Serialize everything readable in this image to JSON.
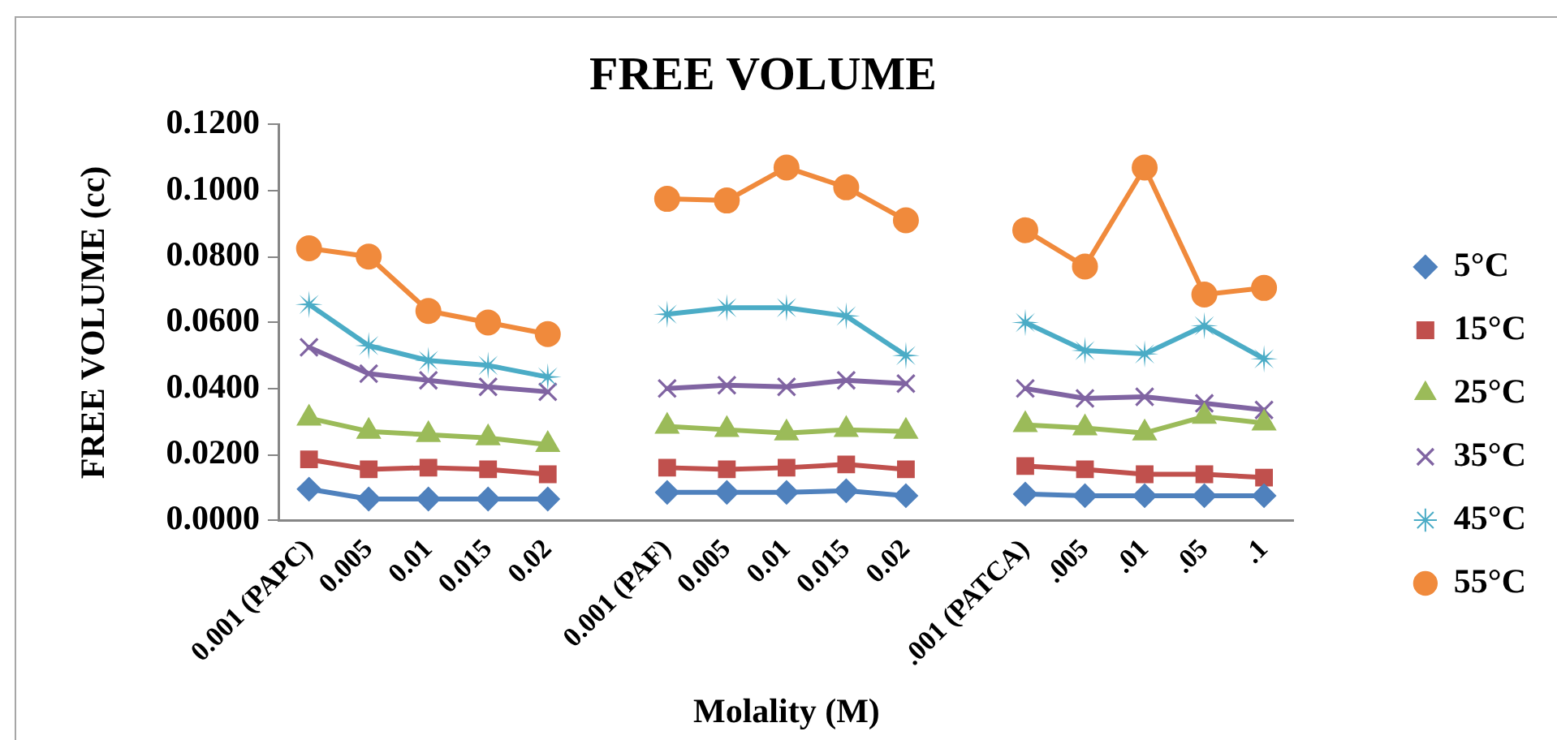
{
  "chart_data": {
    "type": "line",
    "title": "FREE VOLUME",
    "xlabel": "Molality (M)",
    "ylabel": "FREE VOLUME (cc)",
    "categories": [
      "0.001 (PAPC)",
      "0.005",
      "0.01",
      "0.015",
      "0.02",
      null,
      "0.001 (PAF)",
      "0.005",
      "0.01",
      "0.015",
      "0.02",
      null,
      ".001 (PATCA)",
      ".005",
      ".01",
      ".05",
      ".1"
    ],
    "series": [
      {
        "name": "5°C",
        "color": "#4f81bd",
        "marker": "diamond",
        "values": [
          0.0095,
          0.0065,
          0.0065,
          0.0065,
          0.0065,
          null,
          0.0085,
          0.0085,
          0.0085,
          0.009,
          0.0075,
          null,
          0.008,
          0.0075,
          0.0075,
          0.0075,
          0.0075
        ]
      },
      {
        "name": "15°C",
        "color": "#c0504d",
        "marker": "square",
        "values": [
          0.0185,
          0.0155,
          0.016,
          0.0155,
          0.014,
          null,
          0.016,
          0.0155,
          0.016,
          0.017,
          0.0155,
          null,
          0.0165,
          0.0155,
          0.014,
          0.014,
          0.013
        ]
      },
      {
        "name": "25°C",
        "color": "#9bbb59",
        "marker": "triangle",
        "values": [
          0.031,
          0.027,
          0.026,
          0.025,
          0.023,
          null,
          0.0285,
          0.0275,
          0.0265,
          0.0275,
          0.027,
          null,
          0.029,
          0.028,
          0.0265,
          0.0315,
          0.0295
        ]
      },
      {
        "name": "35°C",
        "color": "#8064a2",
        "marker": "cross",
        "values": [
          0.0525,
          0.0445,
          0.0425,
          0.0405,
          0.039,
          null,
          0.04,
          0.041,
          0.0405,
          0.0425,
          0.0415,
          null,
          0.04,
          0.037,
          0.0375,
          0.0355,
          0.0335
        ]
      },
      {
        "name": "45°C",
        "color": "#4bacc6",
        "marker": "star",
        "values": [
          0.0655,
          0.053,
          0.0485,
          0.047,
          0.0435,
          null,
          0.0625,
          0.0645,
          0.0645,
          0.062,
          0.05,
          null,
          0.06,
          0.0515,
          0.0505,
          0.059,
          0.049
        ]
      },
      {
        "name": "55°C",
        "color": "#f08a3c",
        "marker": "circle",
        "values": [
          0.0825,
          0.08,
          0.0635,
          0.06,
          0.0565,
          null,
          0.0975,
          0.097,
          0.107,
          0.101,
          0.091,
          null,
          0.088,
          0.077,
          0.107,
          0.0685,
          0.0705
        ]
      }
    ],
    "ylim": [
      0,
      0.12
    ],
    "yticks": [
      {
        "value": 0,
        "label": "0.0000"
      },
      {
        "value": 0.02,
        "label": "0.0200"
      },
      {
        "value": 0.04,
        "label": "0.0400"
      },
      {
        "value": 0.06,
        "label": "0.0600"
      },
      {
        "value": 0.08,
        "label": "0.0800"
      },
      {
        "value": 0.1,
        "label": "0.1000"
      },
      {
        "value": 0.12,
        "label": "0.1200"
      }
    ],
    "grid": false,
    "legend": "right",
    "line_style": "solid"
  }
}
